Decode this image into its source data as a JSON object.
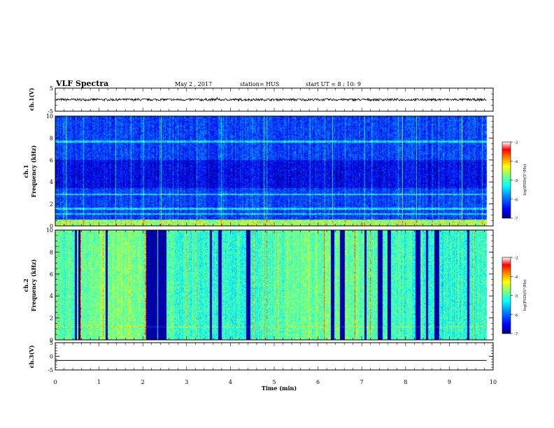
{
  "header": {
    "title": "VLF Spectra",
    "date": "May 2 , 2017",
    "station": "station= HUS",
    "start": "start UT = 8 : 10: 9"
  },
  "chart_data": [
    {
      "type": "line",
      "panel": "ch1-waveform",
      "ylabel": "ch.1(V)",
      "ylim": [
        -5,
        5
      ],
      "y_ticks": [
        "5",
        "-5"
      ],
      "xlim": [
        0,
        10
      ],
      "series": [
        {
          "values_description_level": 0,
          "baseline": 0.0,
          "noise_amplitude": 0.5
        }
      ]
    },
    {
      "type": "heatmap",
      "panel": "ch1-spectrogram",
      "ylabel": "ch.1 Frequency (kHz)",
      "ylim": [
        0,
        10
      ],
      "y_ticks": [
        "0",
        "2",
        "4",
        "6",
        "8",
        "10"
      ],
      "xlim": [
        0,
        9.85
      ],
      "colorbar": {
        "label": "log(PSD)(V²/Hz)",
        "range": [
          -7,
          -3
        ],
        "ticks": [
          "-3",
          "-4",
          "-5",
          "-6",
          "-7"
        ]
      },
      "mean_level": -6.2
    },
    {
      "type": "heatmap",
      "panel": "ch2-spectrogram",
      "ylabel": "ch.2 Frequency (kHz)",
      "ylim": [
        0,
        10
      ],
      "y_ticks": [
        "0",
        "2",
        "4",
        "6",
        "8",
        "10"
      ],
      "xlim": [
        0,
        9.85
      ],
      "colorbar": {
        "label": "log(PSD)(V²/Hz)",
        "range": [
          -7,
          -3
        ],
        "ticks": [
          "-3",
          "-4",
          "-5",
          "-6",
          "-7"
        ]
      },
      "mean_level": -5.0,
      "dropouts_min": [
        0.47,
        0.55,
        1.16,
        2.13,
        2.18,
        2.22,
        2.28,
        2.4,
        2.47,
        3.55,
        3.75,
        4.38,
        4.43,
        6.32,
        6.55,
        7.07,
        7.38,
        7.42,
        7.62,
        8.27,
        8.48,
        8.7,
        9.42
      ]
    },
    {
      "type": "line",
      "panel": "ch3-waveform",
      "ylabel": "ch.3(V)",
      "ylim": [
        -5,
        5
      ],
      "y_ticks": [
        "5",
        "0",
        "-5"
      ],
      "xlim": [
        0,
        10
      ],
      "series": [
        {
          "constant": -1.5
        }
      ]
    }
  ],
  "x_axis": {
    "label": "Time (min)",
    "ticks": [
      "0",
      "1",
      "2",
      "3",
      "4",
      "5",
      "6",
      "7",
      "8",
      "9",
      "10"
    ]
  },
  "colors": {
    "colormap": [
      "#00007f",
      "#0000ff",
      "#007fff",
      "#00ffff",
      "#7fff7f",
      "#ffff00",
      "#ff7f00",
      "#ff0000",
      "#ffffff"
    ]
  }
}
